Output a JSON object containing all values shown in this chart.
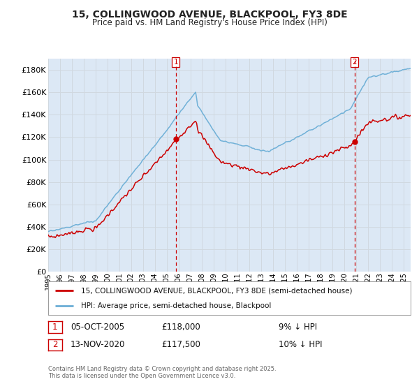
{
  "title": "15, COLLINGWOOD AVENUE, BLACKPOOL, FY3 8DE",
  "subtitle": "Price paid vs. HM Land Registry's House Price Index (HPI)",
  "legend_line1": "15, COLLINGWOOD AVENUE, BLACKPOOL, FY3 8DE (semi-detached house)",
  "legend_line2": "HPI: Average price, semi-detached house, Blackpool",
  "sale1_date": "05-OCT-2005",
  "sale1_price": 118000,
  "sale1_price_str": "£118,000",
  "sale1_note": "9% ↓ HPI",
  "sale2_date": "13-NOV-2020",
  "sale2_price": 117500,
  "sale2_price_str": "£117,500",
  "sale2_note": "10% ↓ HPI",
  "footer": "Contains HM Land Registry data © Crown copyright and database right 2025.\nThis data is licensed under the Open Government Licence v3.0.",
  "hpi_color": "#6baed6",
  "price_color": "#cc0000",
  "dashed_line_color": "#cc0000",
  "plot_bg_color": "#dce8f5",
  "grid_color": "#c8d4e0",
  "ylim": [
    0,
    190000
  ],
  "yticks": [
    0,
    20000,
    40000,
    60000,
    80000,
    100000,
    120000,
    140000,
    160000,
    180000
  ],
  "sale1_year": 2005.77,
  "sale2_year": 2020.87,
  "year_start": 1995,
  "year_end": 2025
}
